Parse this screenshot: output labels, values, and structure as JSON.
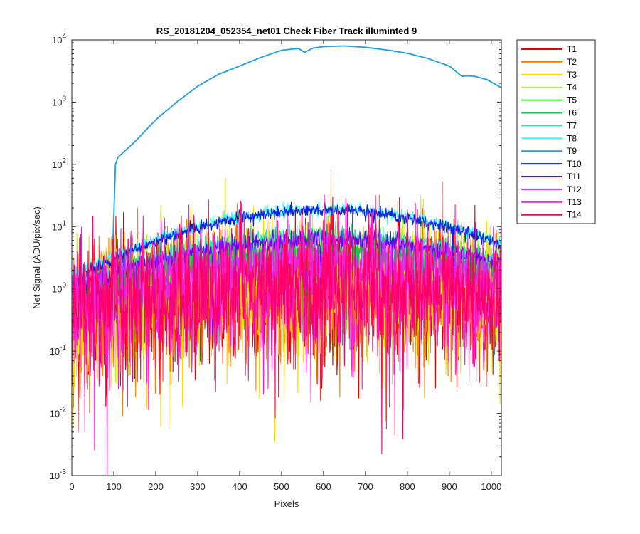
{
  "chart_data": {
    "type": "line",
    "title": "RS_20181204_052354_net01   Check Fiber     Track illuminted 9",
    "xlabel": "Pixels",
    "ylabel": "Net Signal (ADU/pix/sec)",
    "xlim": [
      0,
      1024
    ],
    "ylim": [
      0.001,
      10000
    ],
    "yscale": "log",
    "grid": false,
    "legend_position": "outside-right-top",
    "x_ticks": [
      "0",
      "100",
      "200",
      "300",
      "400",
      "500",
      "600",
      "700",
      "800",
      "900",
      "1000"
    ],
    "y_ticks": [
      {
        "base": "10",
        "exp": "-3"
      },
      {
        "base": "10",
        "exp": "-2"
      },
      {
        "base": "10",
        "exp": "-1"
      },
      {
        "base": "10",
        "exp": "0"
      },
      {
        "base": "10",
        "exp": "1"
      },
      {
        "base": "10",
        "exp": "2"
      },
      {
        "base": "10",
        "exp": "3"
      },
      {
        "base": "10",
        "exp": "4"
      }
    ],
    "series": [
      {
        "name": "T1",
        "color": "#e60000",
        "kind": "noisy",
        "peak": 0.9,
        "edge": 0.35,
        "noise": 1.3
      },
      {
        "name": "T2",
        "color": "#ff8000",
        "kind": "noisy",
        "peak": 1.0,
        "edge": 0.35,
        "noise": 1.25
      },
      {
        "name": "T3",
        "color": "#ffd700",
        "kind": "noisy",
        "peak": 1.1,
        "edge": 0.4,
        "noise": 1.2
      },
      {
        "name": "T4",
        "color": "#b3ff00",
        "kind": "noisy",
        "peak": 1.8,
        "edge": 0.5,
        "noise": 0.9
      },
      {
        "name": "T5",
        "color": "#33ff33",
        "kind": "noisy",
        "peak": 3.5,
        "edge": 0.7,
        "noise": 0.35
      },
      {
        "name": "T6",
        "color": "#00cc44",
        "kind": "noisy",
        "peak": 4.0,
        "edge": 0.8,
        "noise": 0.3
      },
      {
        "name": "T7",
        "color": "#33e6a8",
        "kind": "noisy",
        "peak": 7.0,
        "edge": 1.0,
        "noise": 0.2
      },
      {
        "name": "T8",
        "color": "#33ffff",
        "kind": "noisy",
        "peak": 19.0,
        "edge": 1.3,
        "noise": 0.12
      },
      {
        "name": "T9",
        "color": "#1a9fe6",
        "kind": "illuminated",
        "x": [
          0,
          60,
          95,
          104,
          110,
          150,
          200,
          250,
          300,
          350,
          400,
          450,
          500,
          540,
          555,
          575,
          600,
          650,
          700,
          750,
          800,
          850,
          900,
          930,
          945,
          960,
          990,
          1024
        ],
        "values": [
          1.2,
          1.2,
          1.3,
          100,
          130,
          230,
          520,
          1000,
          1800,
          2800,
          3800,
          5200,
          6800,
          7300,
          6300,
          7400,
          7800,
          8000,
          7600,
          6900,
          6100,
          5000,
          3800,
          2600,
          2650,
          2600,
          2300,
          1700
        ]
      },
      {
        "name": "T10",
        "color": "#0a1fe6",
        "kind": "noisy",
        "peak": 18.5,
        "edge": 1.1,
        "noise": 0.12
      },
      {
        "name": "T11",
        "color": "#6a00ff",
        "kind": "noisy",
        "peak": 6.2,
        "edge": 0.9,
        "noise": 0.2
      },
      {
        "name": "T12",
        "color": "#cc33ff",
        "kind": "noisy",
        "peak": 2.6,
        "edge": 0.6,
        "noise": 0.5
      },
      {
        "name": "T13",
        "color": "#ff1acc",
        "kind": "noisy",
        "peak": 1.0,
        "edge": 0.4,
        "noise": 1.3
      },
      {
        "name": "T14",
        "color": "#ff0066",
        "kind": "noisy",
        "peak": 1.1,
        "edge": 0.45,
        "noise": 1.1
      }
    ]
  }
}
